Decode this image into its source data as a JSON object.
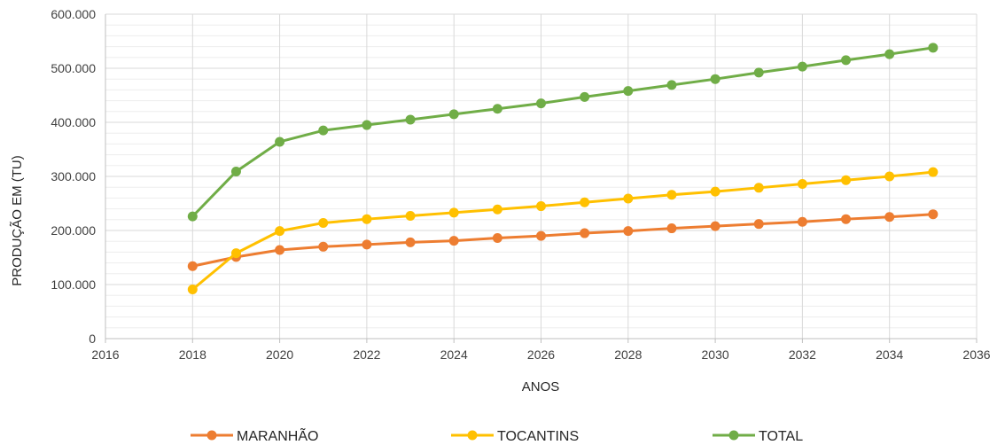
{
  "chart_data": {
    "type": "scatter",
    "xlabel": "ANOS",
    "ylabel": "PRODUÇÃO EM (TU)",
    "xlim": [
      2016,
      2036
    ],
    "ylim": [
      0,
      600000
    ],
    "x_ticks": [
      "2016",
      "2018",
      "2020",
      "2022",
      "2024",
      "2026",
      "2028",
      "2030",
      "2032",
      "2034",
      "2036"
    ],
    "y_ticks": [
      "0",
      "100.000",
      "200.000",
      "300.000",
      "400.000",
      "500.000",
      "600.000"
    ],
    "grid": true,
    "minor_grid_y": true,
    "legend_position": "bottom",
    "x": [
      2018,
      2019,
      2020,
      2021,
      2022,
      2023,
      2024,
      2025,
      2026,
      2027,
      2028,
      2029,
      2030,
      2031,
      2032,
      2033,
      2034,
      2035
    ],
    "series": [
      {
        "name": "MARANHÃO",
        "color": "#ED7D31",
        "values": [
          134000,
          151000,
          164000,
          170000,
          174000,
          178000,
          181000,
          186000,
          190000,
          195000,
          199000,
          204000,
          208000,
          212000,
          216000,
          221000,
          225000,
          230000
        ]
      },
      {
        "name": "TOCANTINS",
        "color": "#FFC000",
        "values": [
          91000,
          158000,
          199000,
          214000,
          221000,
          227000,
          233000,
          239000,
          245000,
          252000,
          259000,
          266000,
          272000,
          279000,
          286000,
          293000,
          300000,
          308000
        ]
      },
      {
        "name": "TOTAL",
        "color": "#70AD47",
        "values": [
          226000,
          309000,
          364000,
          385000,
          395000,
          405000,
          415000,
          425000,
          435000,
          447000,
          458000,
          469000,
          480000,
          492000,
          503000,
          515000,
          526000,
          538000
        ]
      }
    ]
  }
}
